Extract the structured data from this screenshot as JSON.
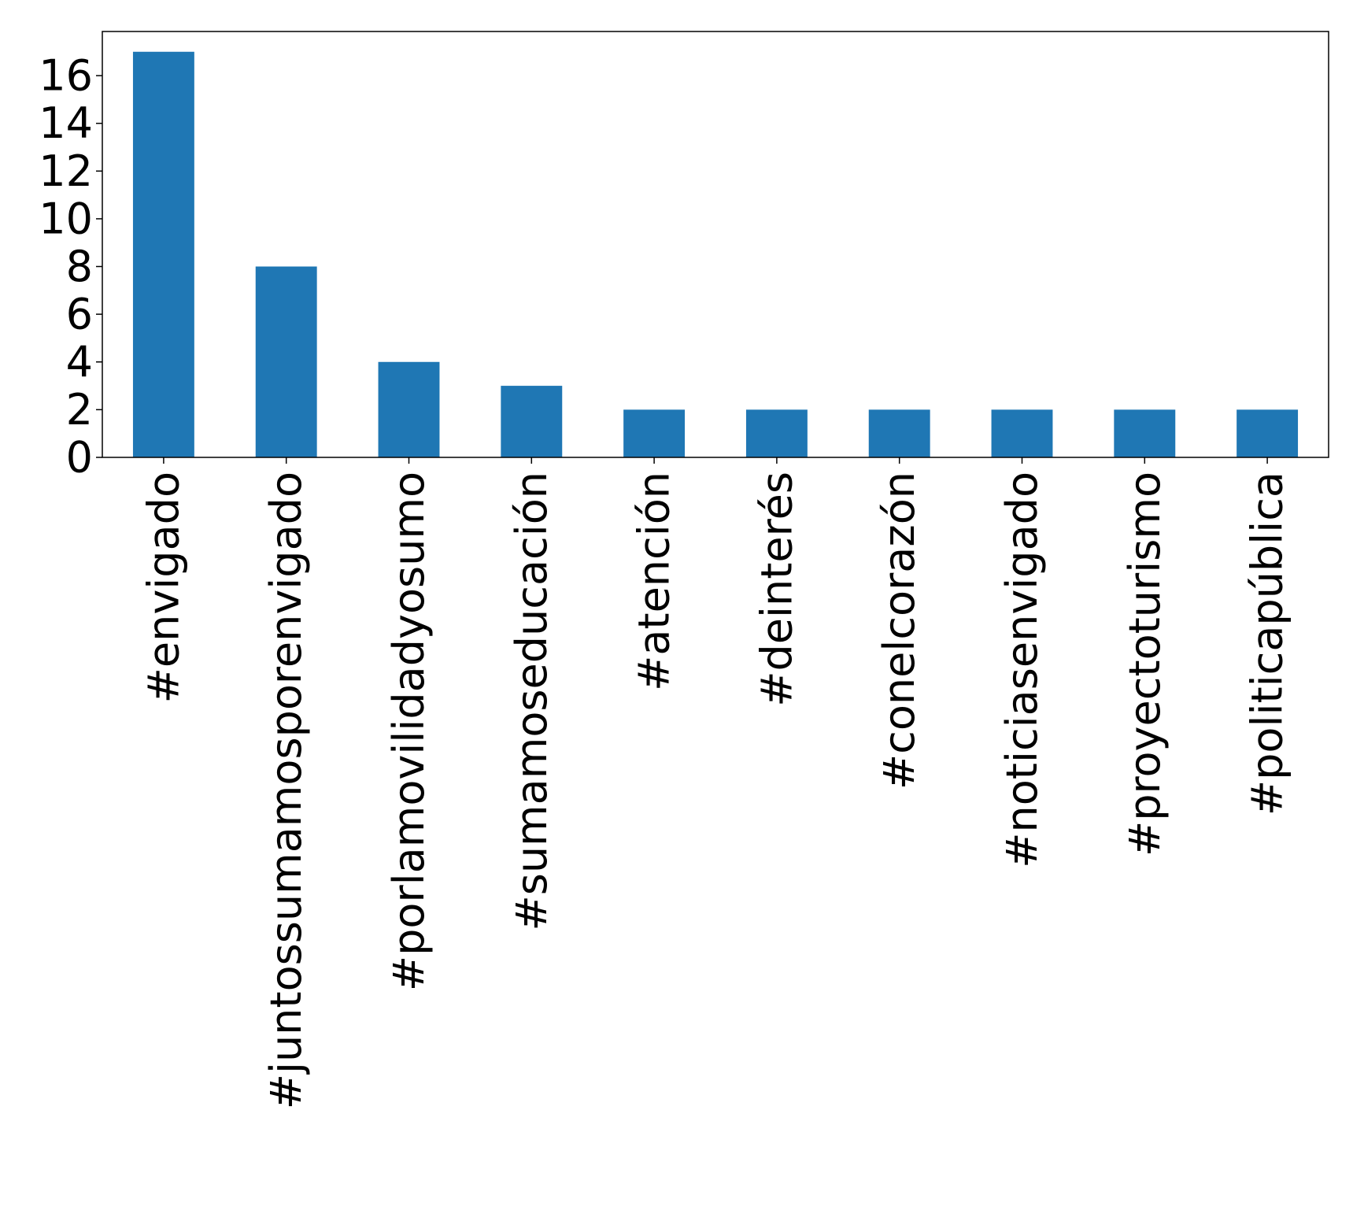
{
  "chart_data": {
    "type": "bar",
    "title": "",
    "xlabel": "",
    "ylabel": "",
    "categories": [
      "#envigado",
      "#juntossumamosporenvigado",
      "#porlamovilidadyosumo",
      "#sumamoseducación",
      "#atención",
      "#deinterés",
      "#conelcorazón",
      "#noticiasenvigado",
      "#proyectoturismo",
      "#politicapública"
    ],
    "values": [
      17,
      8,
      4,
      3,
      2,
      2,
      2,
      2,
      2,
      2
    ],
    "ylim": [
      0,
      17.85
    ],
    "yticks": [
      0,
      2,
      4,
      6,
      8,
      10,
      12,
      14,
      16
    ],
    "grid": false,
    "legend": "none",
    "bar_color": "#1f77b4"
  }
}
